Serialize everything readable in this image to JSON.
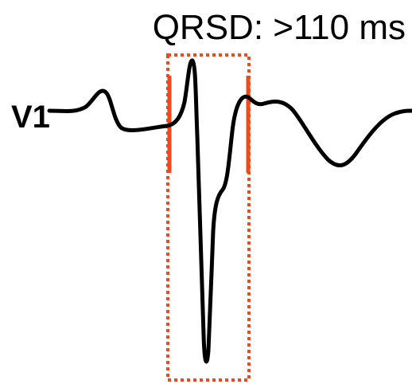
{
  "title": "QRSD: >110 ms",
  "lead_label": "V1"
}
